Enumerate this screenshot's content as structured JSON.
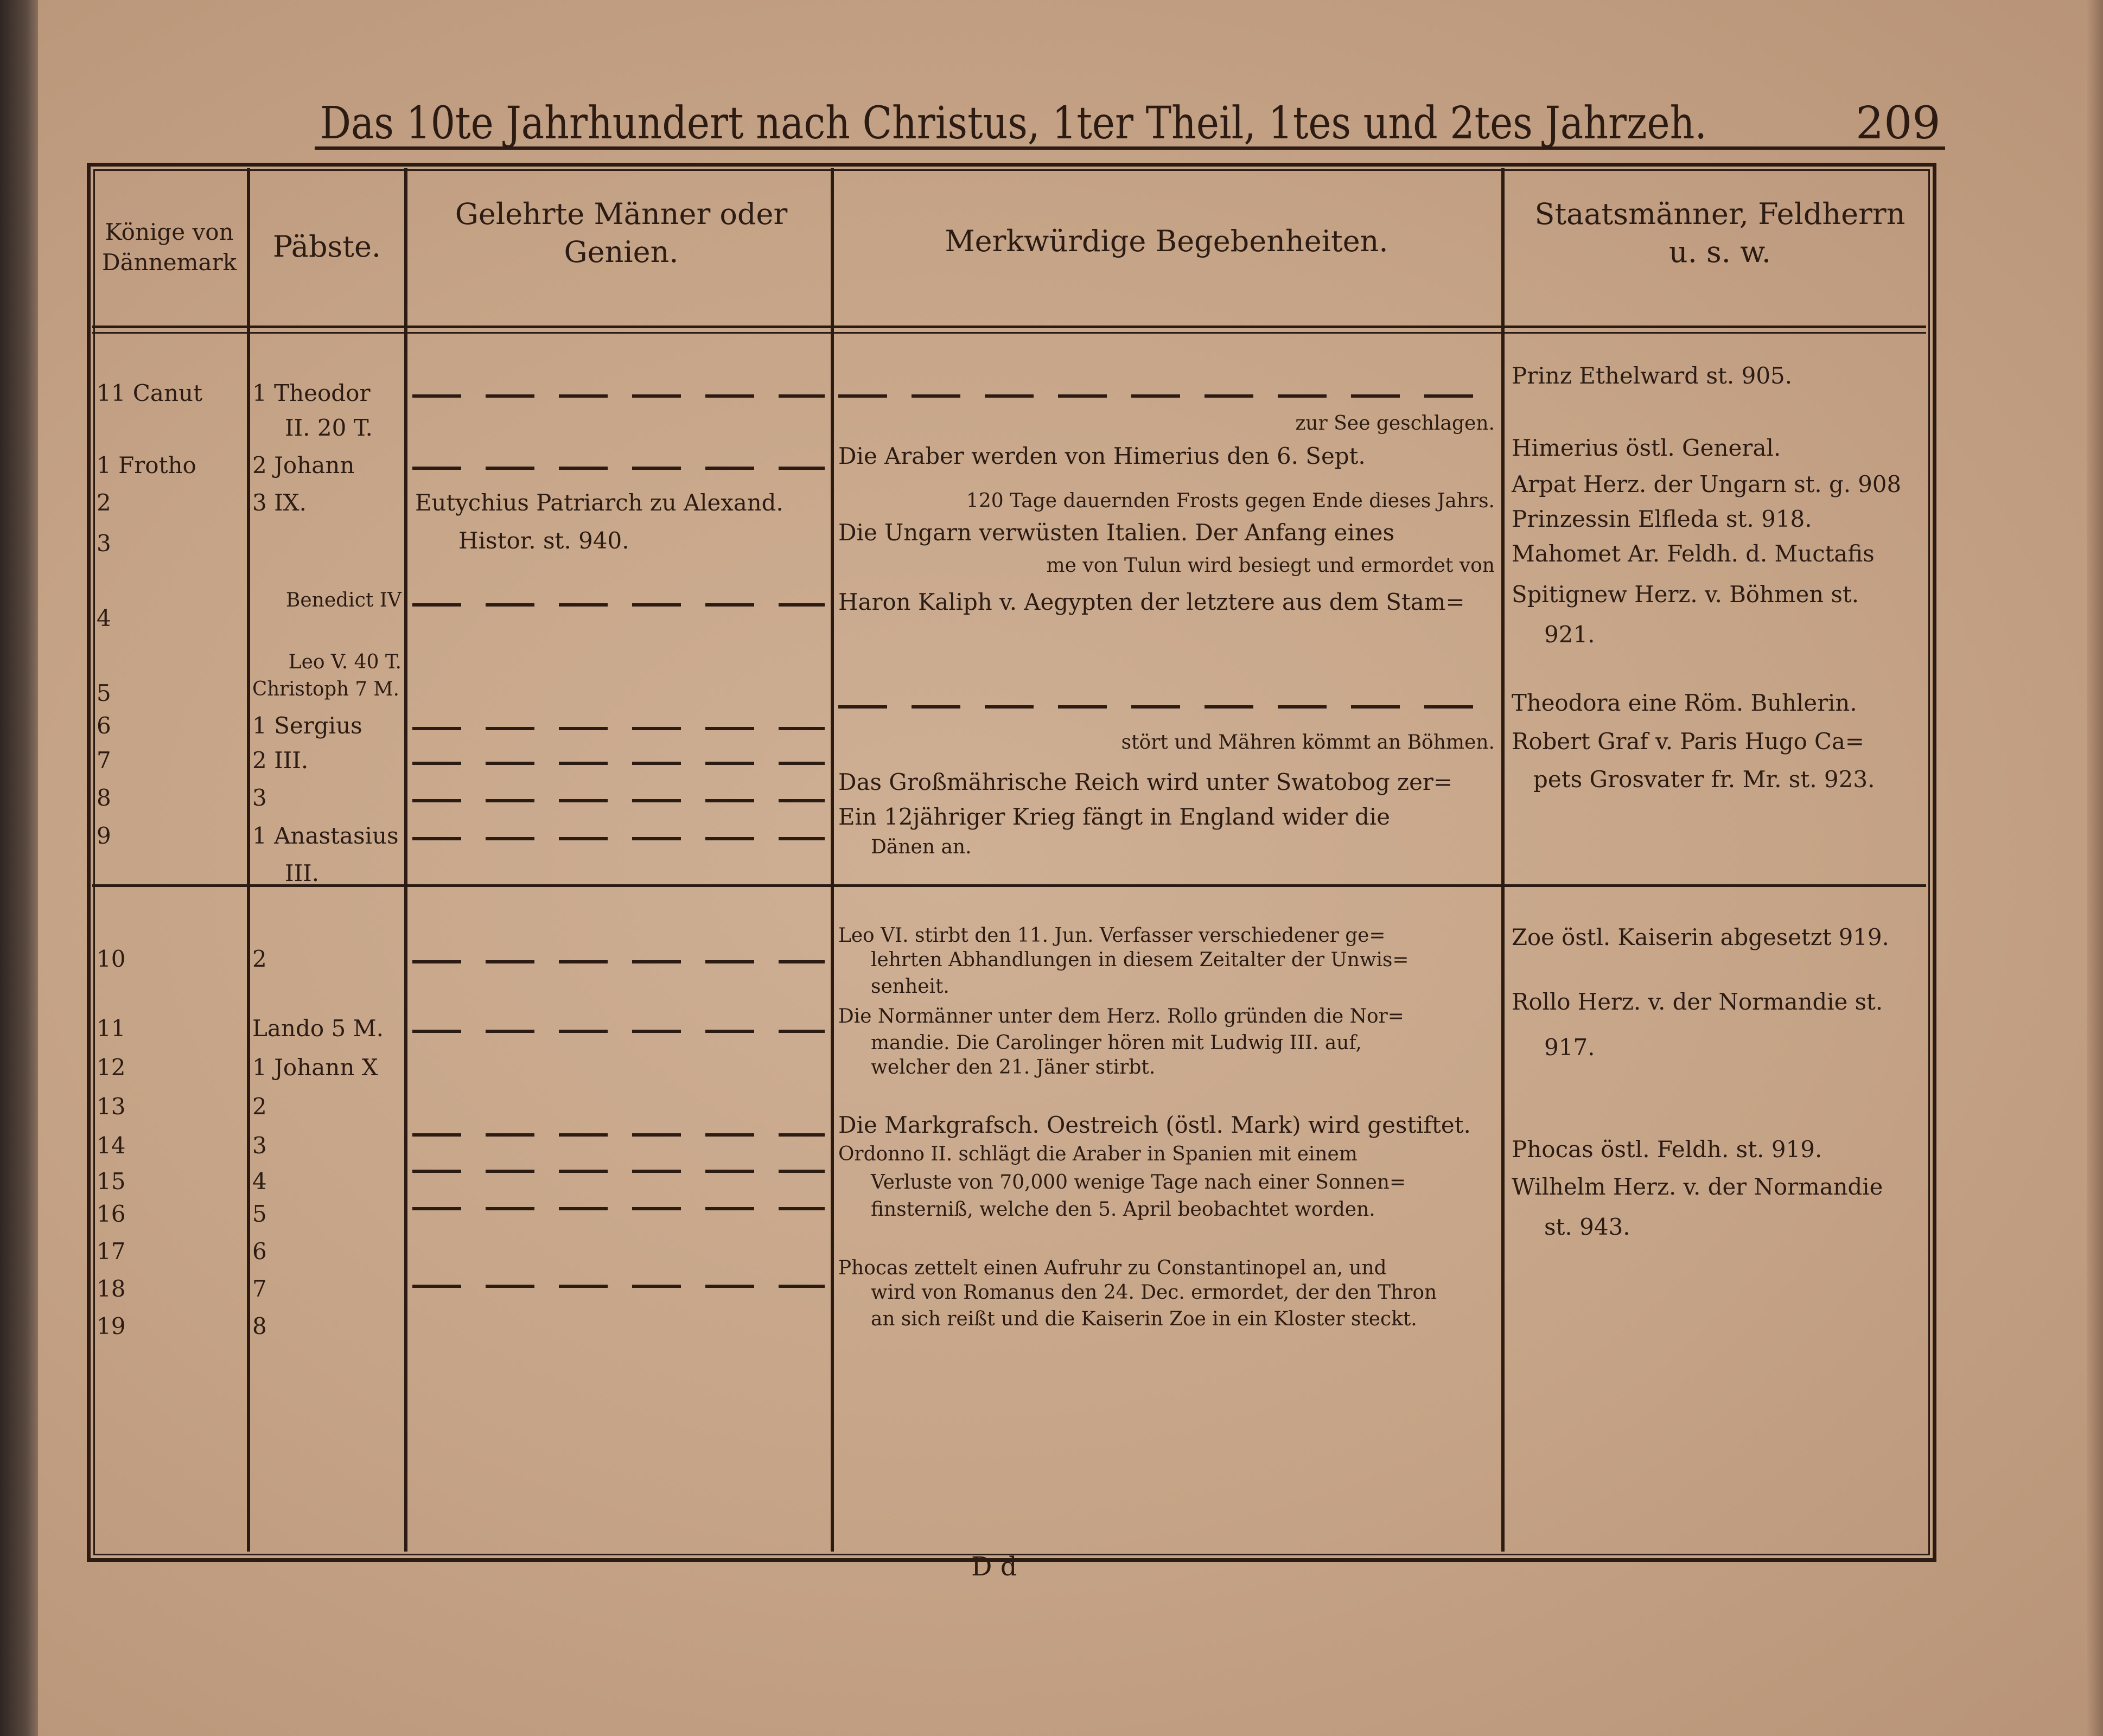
{
  "header": {
    "title": "Das 10te Jahrhundert nach Christus, 1ter Theil, 1tes und 2tes Jahrzeh.",
    "page_number": "209"
  },
  "table": {
    "headers": [
      "Könige von Dännemark",
      "Päbste.",
      "Gelehrte Männer oder Genien.",
      "Merkwürdige Begebenheiten.",
      "Staatsmänner, Feldherrn u. s. w."
    ],
    "kings": [
      "11 Canut",
      "1 Frotho",
      "2",
      "3",
      "4",
      "5",
      "6",
      "7",
      "8",
      "9",
      "10",
      "11",
      "12",
      "13",
      "14",
      "15",
      "16",
      "17",
      "18",
      "19"
    ],
    "popes": [
      "1 Theodor",
      "II. 20 T.",
      "2 Johann",
      "3 IX.",
      "Benedict IV",
      "Leo V. 40 T.",
      "Christoph 7 M.",
      "1 Sergius",
      "2 III.",
      "3",
      "1 Anastasius",
      "III.",
      "2",
      "Lando 5 M.",
      "1 Johann X",
      "2",
      "3",
      "4",
      "5",
      "6",
      "7",
      "8"
    ],
    "scholars": [
      "Eutychius Patriarch zu Alexand.",
      "Histor. st. 940."
    ],
    "events": [
      "zur See geschlagen.",
      "Die Araber werden von Himerius den 6. Sept.",
      "120 Tage dauernden Frosts gegen Ende dieses Jahrs.",
      "Die Ungarn verwüsten Italien. Der Anfang eines",
      "me von Tulun wird besiegt und ermordet von",
      "Haron Kaliph v. Aegypten der letztere aus dem Stam=",
      "stört und Mähren kömmt an Böhmen.",
      "Das Großmährische Reich wird unter Swatobog zer=",
      "Ein 12jähriger Krieg fängt in England wider die",
      "Dänen an.",
      "Leo VI. stirbt den 11. Jun. Verfasser verschiedener ge=",
      "lehrten Abhandlungen in diesem Zeitalter der Unwis=",
      "senheit.",
      "Die Normänner unter dem Herz. Rollo gründen die Nor=",
      "mandie. Die Carolinger hören mit Ludwig III. auf,",
      "welcher den 21. Jäner stirbt.",
      "Die Markgrafsch. Oestreich (östl. Mark) wird gestiftet.",
      "Ordonno II. schlägt die Araber in Spanien mit einem",
      "Verluste von 70,000 wenige Tage nach einer Sonnen=",
      "finsterniß, welche den 5. April beobachtet worden.",
      "Phocas zettelt einen Aufruhr zu Constantinopel an, und",
      "wird von Romanus den 24. Dec. ermordet, der den Thron",
      "an sich reißt und die Kaiserin Zoe in ein Kloster steckt."
    ],
    "statesmen": [
      "Prinz Ethelward st. 905.",
      "Himerius östl. General.",
      "Arpat Herz. der Ungarn st. g. 908",
      "Prinzessin Elfleda st. 918.",
      "Mahomet Ar. Feldh. d. Muctafis",
      "Spitignew Herz. v. Böhmen st.",
      "921.",
      "Theodora eine Röm. Buhlerin.",
      "Robert Graf v. Paris Hugo Ca=",
      "pets Grosvater fr. Mr. st. 923.",
      "Zoe östl. Kaiserin abgesetzt 919.",
      "Rollo Herz. v. der Normandie st.",
      "917.",
      "Phocas östl. Feldh. st. 919.",
      "Wilhelm Herz. v. der Normandie",
      "st. 943."
    ]
  },
  "footer": {
    "signature": "D d"
  },
  "colors": {
    "paper": "#c5a386",
    "ink": "#2b1b13"
  }
}
